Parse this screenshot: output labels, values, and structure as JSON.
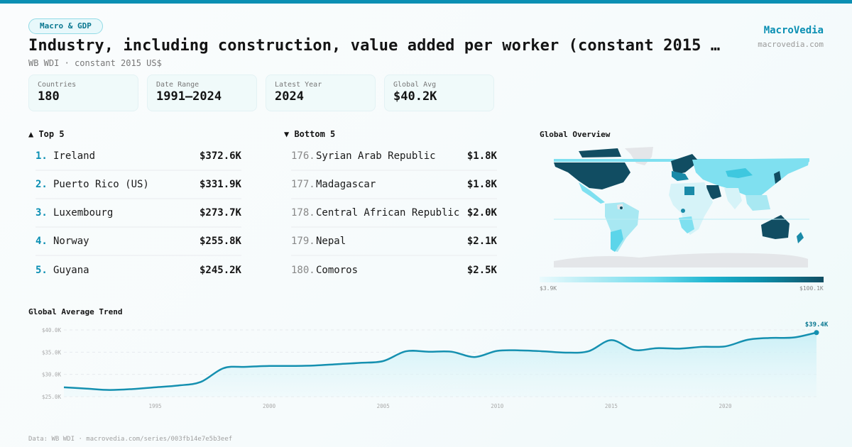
{
  "header": {
    "tag": "Macro & GDP",
    "title": "Industry, including construction, value added per worker (constant 2015 …",
    "subtitle": "WB WDI · constant 2015 US$",
    "brand_name": "MacroVedia",
    "brand_url": "macrovedia.com"
  },
  "stats": [
    {
      "label": "Countries",
      "value": "180"
    },
    {
      "label": "Date Range",
      "value": "1991–2024"
    },
    {
      "label": "Latest Year",
      "value": "2024"
    },
    {
      "label": "Global Avg",
      "value": "$40.2K"
    }
  ],
  "top5": {
    "heading": "▲ Top 5",
    "items": [
      {
        "rank": "1.",
        "name": "Ireland",
        "value": "$372.6K"
      },
      {
        "rank": "2.",
        "name": "Puerto Rico (US)",
        "value": "$331.9K"
      },
      {
        "rank": "3.",
        "name": "Luxembourg",
        "value": "$273.7K"
      },
      {
        "rank": "4.",
        "name": "Norway",
        "value": "$255.8K"
      },
      {
        "rank": "5.",
        "name": "Guyana",
        "value": "$245.2K"
      }
    ]
  },
  "bottom5": {
    "heading": "▼ Bottom 5",
    "items": [
      {
        "rank": "176.",
        "name": "Syrian Arab Republic",
        "value": "$1.8K"
      },
      {
        "rank": "177.",
        "name": "Madagascar",
        "value": "$1.8K"
      },
      {
        "rank": "178.",
        "name": "Central African Republic",
        "value": "$2.0K"
      },
      {
        "rank": "179.",
        "name": "Nepal",
        "value": "$2.1K"
      },
      {
        "rank": "180.",
        "name": "Comoros",
        "value": "$2.5K"
      }
    ]
  },
  "map": {
    "title": "Global Overview",
    "legend_min": "$3.9K",
    "legend_max": "$100.1K",
    "colors": {
      "low": "#ebfafd",
      "mid": "#6fdcee",
      "high": "#114d62",
      "nodata": "#e4e6e9"
    }
  },
  "trend": {
    "title": "Global Average Trend",
    "end_label": "$39.4K"
  },
  "footer": "Data: WB WDI · macrovedia.com/series/003fb14e7e5b3eef",
  "colors": {
    "accent": "#0a8fb3",
    "line": "#1590b0",
    "fill": "#c8eff6"
  },
  "chart_data": {
    "type": "area",
    "title": "Global Average Trend",
    "xlabel": "",
    "ylabel": "",
    "x": [
      1991,
      1992,
      1993,
      1994,
      1995,
      1996,
      1997,
      1998,
      1999,
      2000,
      2001,
      2002,
      2003,
      2004,
      2005,
      2006,
      2007,
      2008,
      2009,
      2010,
      2011,
      2012,
      2013,
      2014,
      2015,
      2016,
      2017,
      2018,
      2019,
      2020,
      2021,
      2022,
      2023,
      2024
    ],
    "values": [
      27.1,
      26.8,
      26.5,
      26.7,
      27.1,
      27.5,
      28.3,
      31.4,
      31.7,
      31.9,
      31.9,
      32.0,
      32.3,
      32.6,
      33.0,
      35.2,
      35.1,
      35.1,
      33.9,
      35.3,
      35.4,
      35.2,
      34.9,
      35.2,
      37.7,
      35.5,
      35.9,
      35.8,
      36.2,
      36.3,
      37.8,
      38.2,
      38.3,
      39.4
    ],
    "units": "thousand constant 2015 US$",
    "ylim": [
      25,
      40
    ],
    "yticks": [
      "$25.0K",
      "$30.0K",
      "$35.0K",
      "$40.0K"
    ],
    "xticks": [
      "1995",
      "2000",
      "2005",
      "2010",
      "2015",
      "2020"
    ],
    "grid": true,
    "annotation": {
      "x": 2024,
      "label": "$39.4K"
    }
  }
}
